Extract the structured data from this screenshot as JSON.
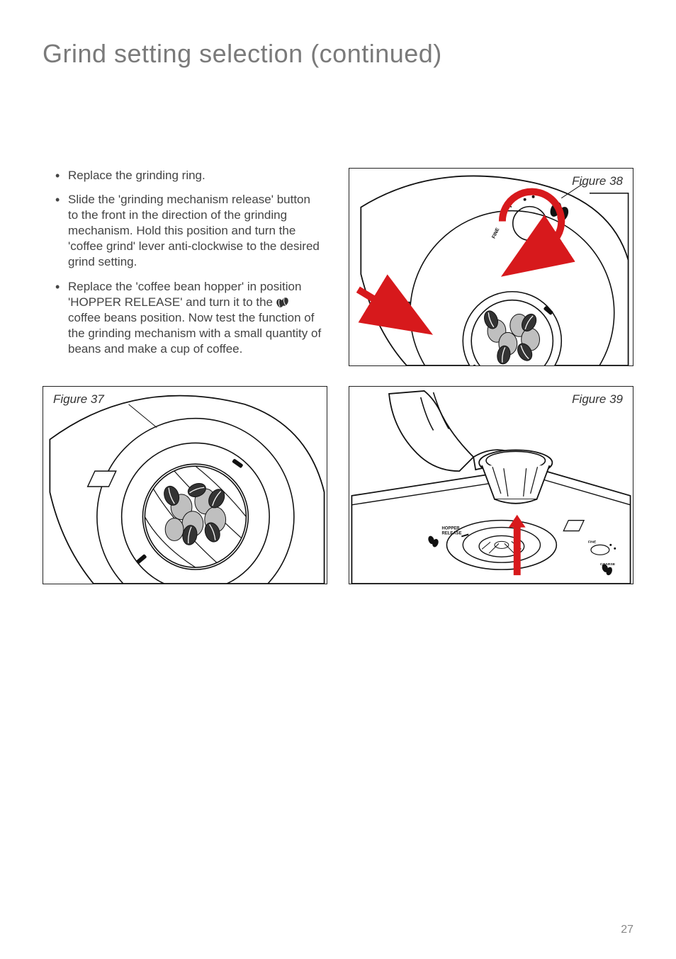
{
  "heading": "Grind setting selection (continued)",
  "bullets": [
    "Replace the grinding ring.",
    "Slide the 'grinding mechanism release' button to the front in the direction of the grinding mechanism. Hold this position and turn the 'coffee grind' lever anti-clockwise to the desired grind setting.",
    "Replace the 'coffee bean hopper' in position 'HOPPER RELEASE' and turn it to the |BEANICON| coffee beans position. Now test the function of the grinding mechanism with a small quantity of beans and make a cup of coffee."
  ],
  "figures": {
    "f37": {
      "label": "Figure 37"
    },
    "f38": {
      "label": "Figure 38",
      "fine_label": "FINE",
      "coarse_label": "COARSE"
    },
    "f39": {
      "label": "Figure 39",
      "hopper_label": "HOPPER RELEASE",
      "fine_label": "FINE",
      "coarse_label": "COARSE"
    }
  },
  "page_number": "27",
  "colors": {
    "arrow_red": "#d7191c",
    "line": "#111111",
    "bean_light": "#bfbfbf",
    "bean_dark": "#333333"
  }
}
